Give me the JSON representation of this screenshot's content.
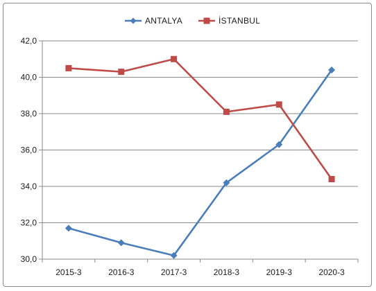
{
  "chart_data": {
    "type": "line",
    "categories": [
      "2015-3",
      "2016-3",
      "2017-3",
      "2018-3",
      "2019-3",
      "2020-3"
    ],
    "series": [
      {
        "name": "ANTALYA",
        "color": "#4a7ebb",
        "marker": "diamond",
        "values": [
          31.7,
          30.9,
          30.2,
          34.2,
          36.3,
          40.4
        ]
      },
      {
        "name": "İSTANBUL",
        "color": "#be4b48",
        "marker": "square",
        "values": [
          40.5,
          40.3,
          41.0,
          38.1,
          38.5,
          34.4
        ]
      }
    ],
    "ylim": [
      30.0,
      42.0
    ],
    "yticks": [
      "30,0",
      "32,0",
      "34,0",
      "36,0",
      "38,0",
      "40,0",
      "42,0"
    ],
    "grid": true,
    "legend": "top-center",
    "title": "",
    "xlabel": "",
    "ylabel": ""
  }
}
